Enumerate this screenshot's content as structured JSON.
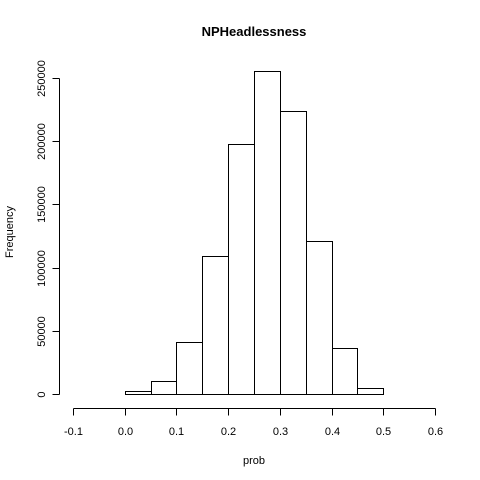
{
  "chart_data": {
    "type": "bar",
    "subtype": "histogram",
    "title": "NPHeadlessness",
    "xlabel": "prob",
    "ylabel": "Frequency",
    "bins": [
      {
        "start": -0.1,
        "end": -0.05,
        "count": 0
      },
      {
        "start": -0.05,
        "end": 0.0,
        "count": 0
      },
      {
        "start": 0.0,
        "end": 0.05,
        "count": 2000
      },
      {
        "start": 0.05,
        "end": 0.1,
        "count": 10000
      },
      {
        "start": 0.1,
        "end": 0.15,
        "count": 41500
      },
      {
        "start": 0.15,
        "end": 0.2,
        "count": 109500
      },
      {
        "start": 0.2,
        "end": 0.25,
        "count": 197500
      },
      {
        "start": 0.25,
        "end": 0.3,
        "count": 255500
      },
      {
        "start": 0.3,
        "end": 0.35,
        "count": 224000
      },
      {
        "start": 0.35,
        "end": 0.4,
        "count": 121000
      },
      {
        "start": 0.4,
        "end": 0.45,
        "count": 36000
      },
      {
        "start": 0.45,
        "end": 0.5,
        "count": 5000
      },
      {
        "start": 0.5,
        "end": 0.55,
        "count": 0
      },
      {
        "start": 0.55,
        "end": 0.6,
        "count": 0
      }
    ],
    "xlim": [
      -0.1,
      0.6
    ],
    "ylim": [
      0,
      265000
    ],
    "x_ticks": [
      -0.1,
      0.0,
      0.1,
      0.2,
      0.3,
      0.4,
      0.5,
      0.6
    ],
    "x_tick_labels": [
      "-0.1",
      "0.0",
      "0.1",
      "0.2",
      "0.3",
      "0.4",
      "0.5",
      "0.6"
    ],
    "y_ticks": [
      0,
      50000,
      100000,
      150000,
      200000,
      250000
    ],
    "y_tick_labels": [
      "0",
      "50000",
      "100000",
      "150000",
      "200000",
      "250000"
    ],
    "grid": false,
    "legend": "none",
    "bar_fill": "#ffffff",
    "bar_stroke": "#000000"
  }
}
